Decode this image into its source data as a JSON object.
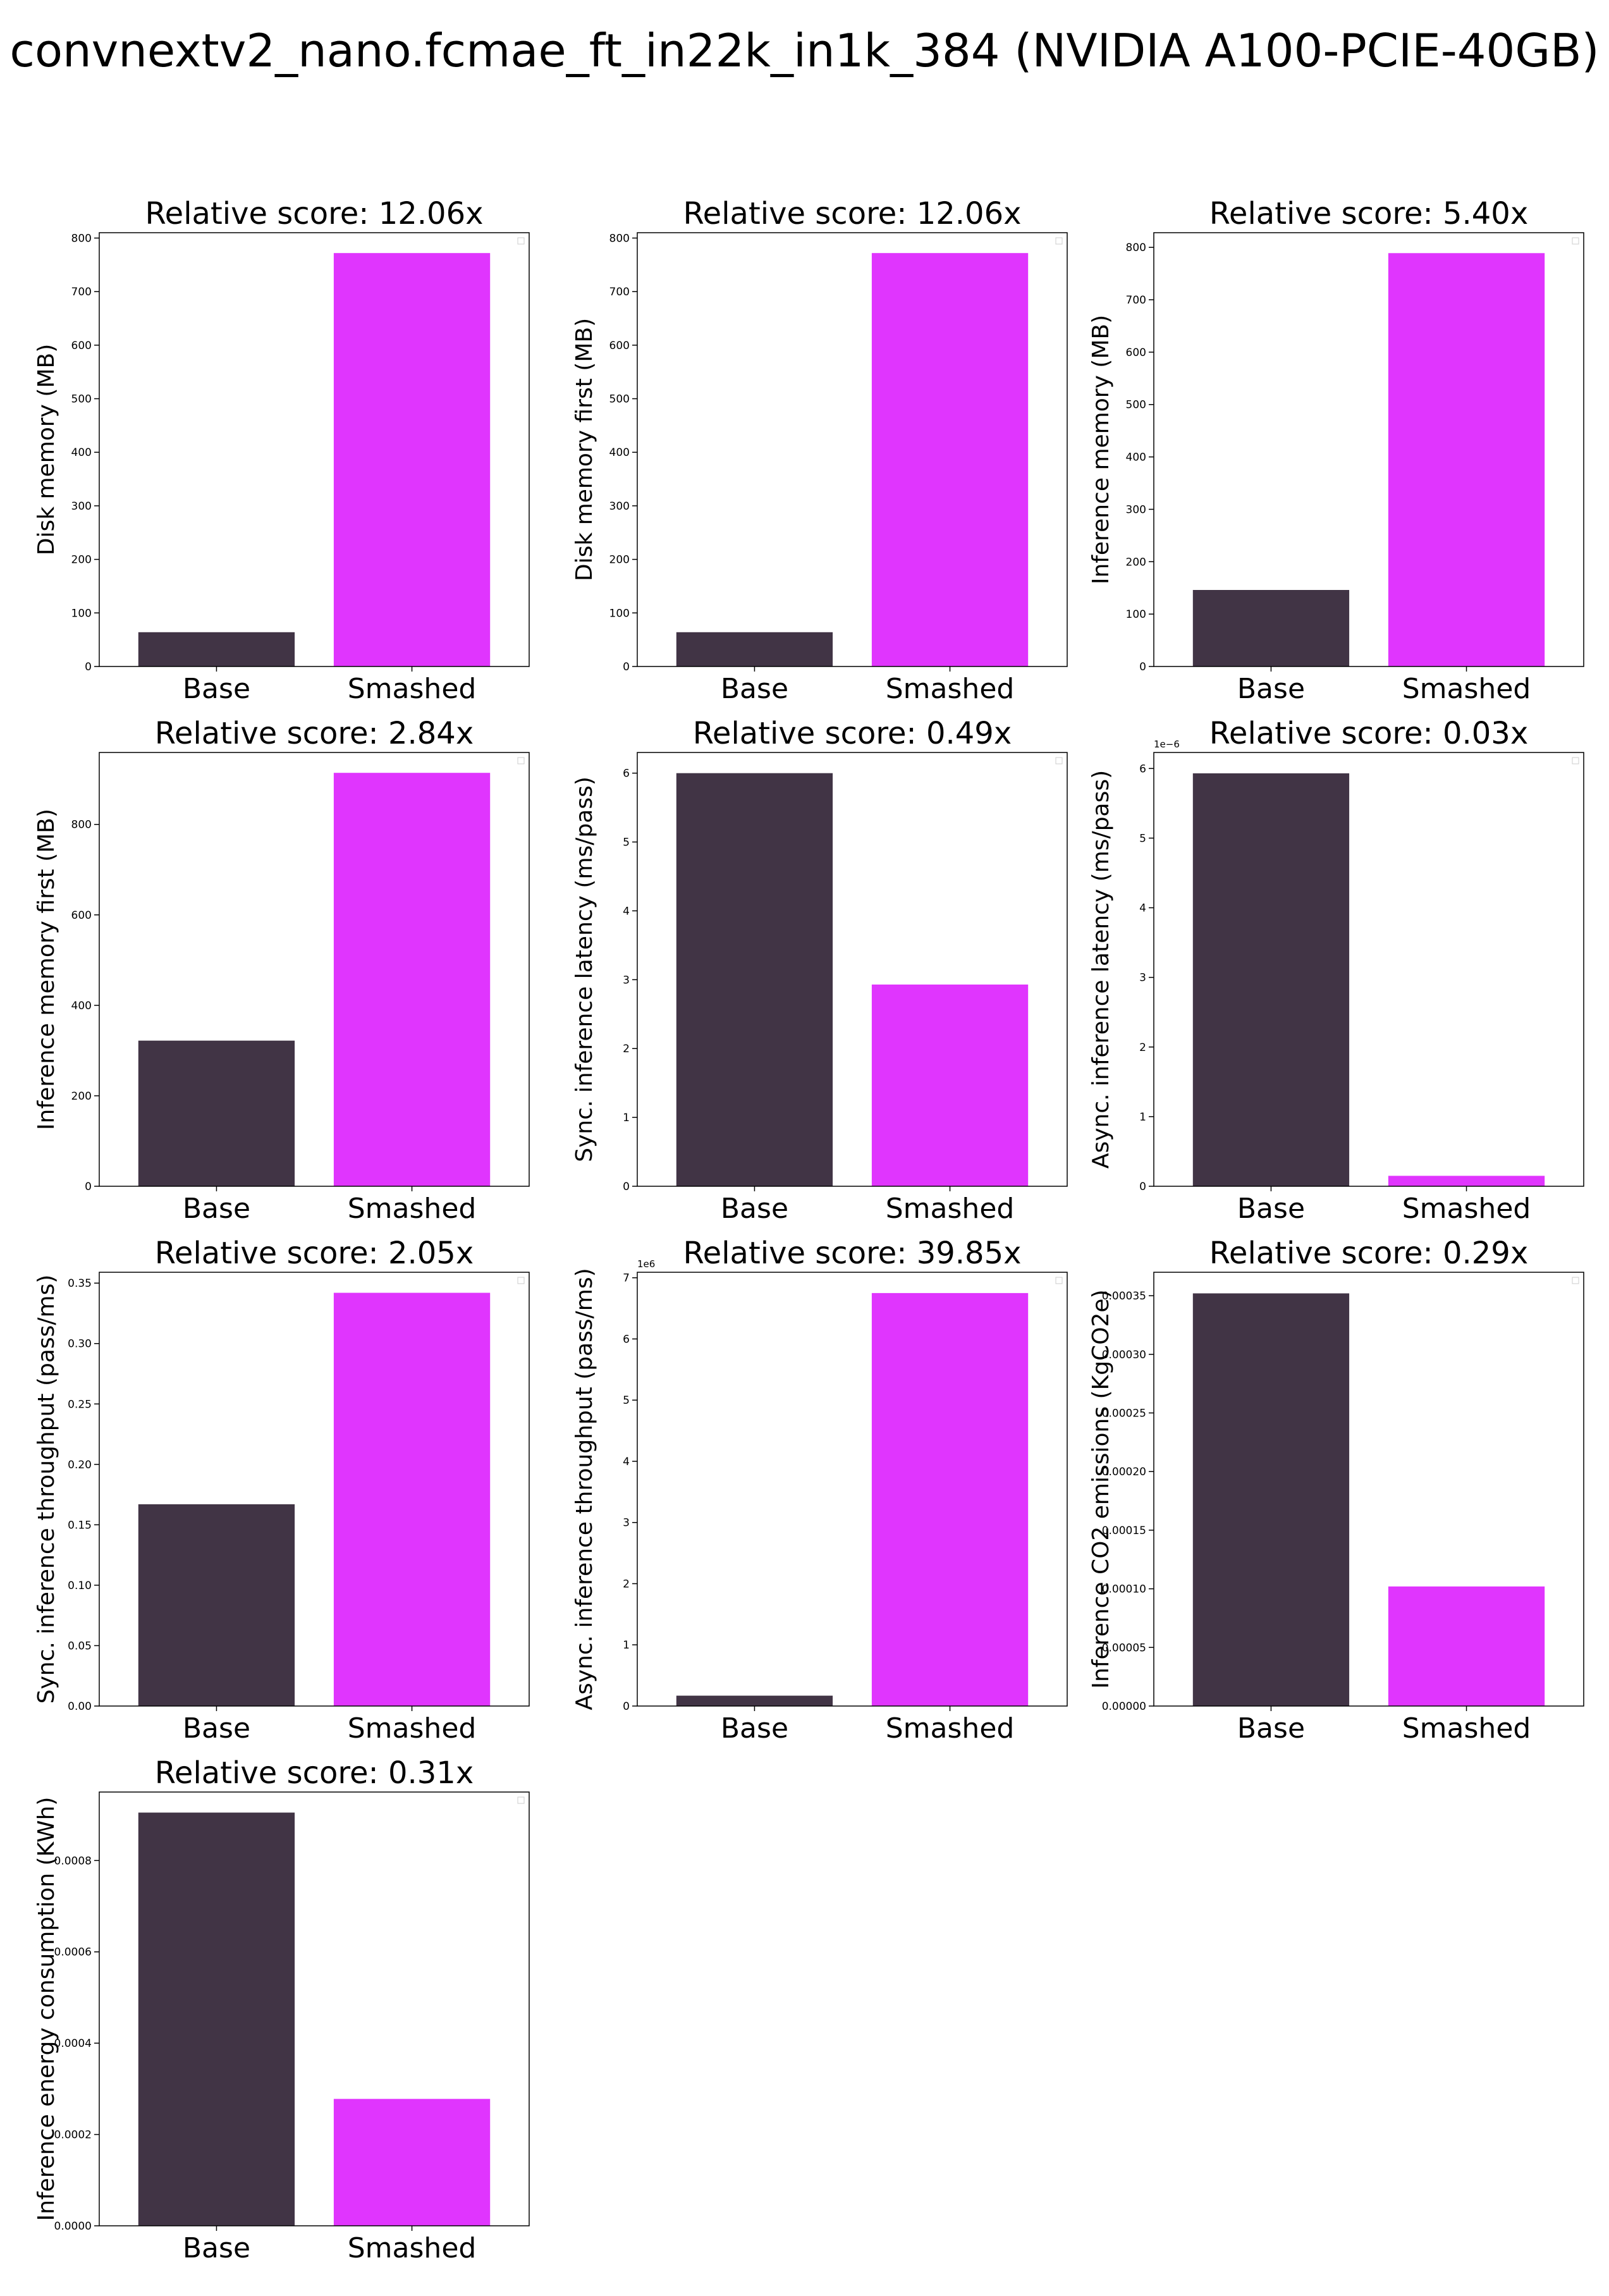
{
  "suptitle": "convnextv2_nano.fcmae_ft_in22k_in1k_384 (NVIDIA A100-PCIE-40GB)",
  "colors": {
    "base": "#413445",
    "smashed": "#e035fe"
  },
  "chart_data": [
    {
      "type": "bar",
      "title": "Relative score: 12.06x",
      "ylabel": "Disk memory (MB)",
      "categories": [
        "Base",
        "Smashed"
      ],
      "values": [
        64,
        772
      ],
      "ylim": [
        0,
        810
      ],
      "yticks": [
        "0",
        "100",
        "200",
        "300",
        "400",
        "500",
        "600",
        "700",
        "800"
      ],
      "ytick_values": [
        0,
        100,
        200,
        300,
        400,
        500,
        600,
        700,
        800
      ],
      "offset_label": ""
    },
    {
      "type": "bar",
      "title": "Relative score: 12.06x",
      "ylabel": "Disk memory first (MB)",
      "categories": [
        "Base",
        "Smashed"
      ],
      "values": [
        64,
        772
      ],
      "ylim": [
        0,
        810
      ],
      "yticks": [
        "0",
        "100",
        "200",
        "300",
        "400",
        "500",
        "600",
        "700",
        "800"
      ],
      "ytick_values": [
        0,
        100,
        200,
        300,
        400,
        500,
        600,
        700,
        800
      ],
      "offset_label": ""
    },
    {
      "type": "bar",
      "title": "Relative score: 5.40x",
      "ylabel": "Inference memory (MB)",
      "categories": [
        "Base",
        "Smashed"
      ],
      "values": [
        146,
        789
      ],
      "ylim": [
        0,
        828
      ],
      "yticks": [
        "0",
        "100",
        "200",
        "300",
        "400",
        "500",
        "600",
        "700",
        "800"
      ],
      "ytick_values": [
        0,
        100,
        200,
        300,
        400,
        500,
        600,
        700,
        800
      ],
      "offset_label": ""
    },
    {
      "type": "bar",
      "title": "Relative score: 2.84x",
      "ylabel": "Inference memory first (MB)",
      "categories": [
        "Base",
        "Smashed"
      ],
      "values": [
        322,
        914
      ],
      "ylim": [
        0,
        959
      ],
      "yticks": [
        "0",
        "200",
        "400",
        "600",
        "800"
      ],
      "ytick_values": [
        0,
        200,
        400,
        600,
        800
      ],
      "offset_label": ""
    },
    {
      "type": "bar",
      "title": "Relative score: 0.49x",
      "ylabel": "Sync. inference latency (ms/pass)",
      "categories": [
        "Base",
        "Smashed"
      ],
      "values": [
        6.0,
        2.93
      ],
      "ylim": [
        0,
        6.3
      ],
      "yticks": [
        "0",
        "1",
        "2",
        "3",
        "4",
        "5",
        "6"
      ],
      "ytick_values": [
        0,
        1,
        2,
        3,
        4,
        5,
        6
      ],
      "offset_label": ""
    },
    {
      "type": "bar",
      "title": "Relative score: 0.03x",
      "ylabel": "Async. inference latency (ms/pass)",
      "categories": [
        "Base",
        "Smashed"
      ],
      "values": [
        5.93,
        0.15
      ],
      "ylim": [
        0,
        6.23
      ],
      "yticks": [
        "0",
        "1",
        "2",
        "3",
        "4",
        "5",
        "6"
      ],
      "ytick_values": [
        0,
        1,
        2,
        3,
        4,
        5,
        6
      ],
      "offset_label": "1e−6"
    },
    {
      "type": "bar",
      "title": "Relative score: 2.05x",
      "ylabel": "Sync. inference throughput (pass/ms)",
      "categories": [
        "Base",
        "Smashed"
      ],
      "values": [
        0.167,
        0.342
      ],
      "ylim": [
        0,
        0.359
      ],
      "yticks": [
        "0.00",
        "0.05",
        "0.10",
        "0.15",
        "0.20",
        "0.25",
        "0.30",
        "0.35"
      ],
      "ytick_values": [
        0,
        0.05,
        0.1,
        0.15,
        0.2,
        0.25,
        0.3,
        0.35
      ],
      "offset_label": ""
    },
    {
      "type": "bar",
      "title": "Relative score: 39.85x",
      "ylabel": "Async. inference throughput (pass/ms)",
      "categories": [
        "Base",
        "Smashed"
      ],
      "values": [
        0.17,
        6.75
      ],
      "ylim": [
        0,
        7.09
      ],
      "yticks": [
        "0",
        "1",
        "2",
        "3",
        "4",
        "5",
        "6",
        "7"
      ],
      "ytick_values": [
        0,
        1,
        2,
        3,
        4,
        5,
        6,
        7
      ],
      "offset_label": "1e6"
    },
    {
      "type": "bar",
      "title": "Relative score: 0.29x",
      "ylabel": "Inference CO2 emissions (KgCO2e)",
      "categories": [
        "Base",
        "Smashed"
      ],
      "values": [
        0.000352,
        0.000102
      ],
      "ylim": [
        0,
        0.00037
      ],
      "yticks": [
        "0.00000",
        "0.00005",
        "0.00010",
        "0.00015",
        "0.00020",
        "0.00025",
        "0.00030",
        "0.00035"
      ],
      "ytick_values": [
        0,
        5e-05,
        0.0001,
        0.00015,
        0.0002,
        0.00025,
        0.0003,
        0.00035
      ],
      "offset_label": ""
    },
    {
      "type": "bar",
      "title": "Relative score: 0.31x",
      "ylabel": "Inference energy consumption (KWh)",
      "categories": [
        "Base",
        "Smashed"
      ],
      "values": [
        0.000905,
        0.000278
      ],
      "ylim": [
        0,
        0.00095
      ],
      "yticks": [
        "0.0000",
        "0.0002",
        "0.0004",
        "0.0006",
        "0.0008"
      ],
      "ytick_values": [
        0,
        0.0002,
        0.0004,
        0.0006,
        0.0008
      ],
      "offset_label": ""
    }
  ]
}
